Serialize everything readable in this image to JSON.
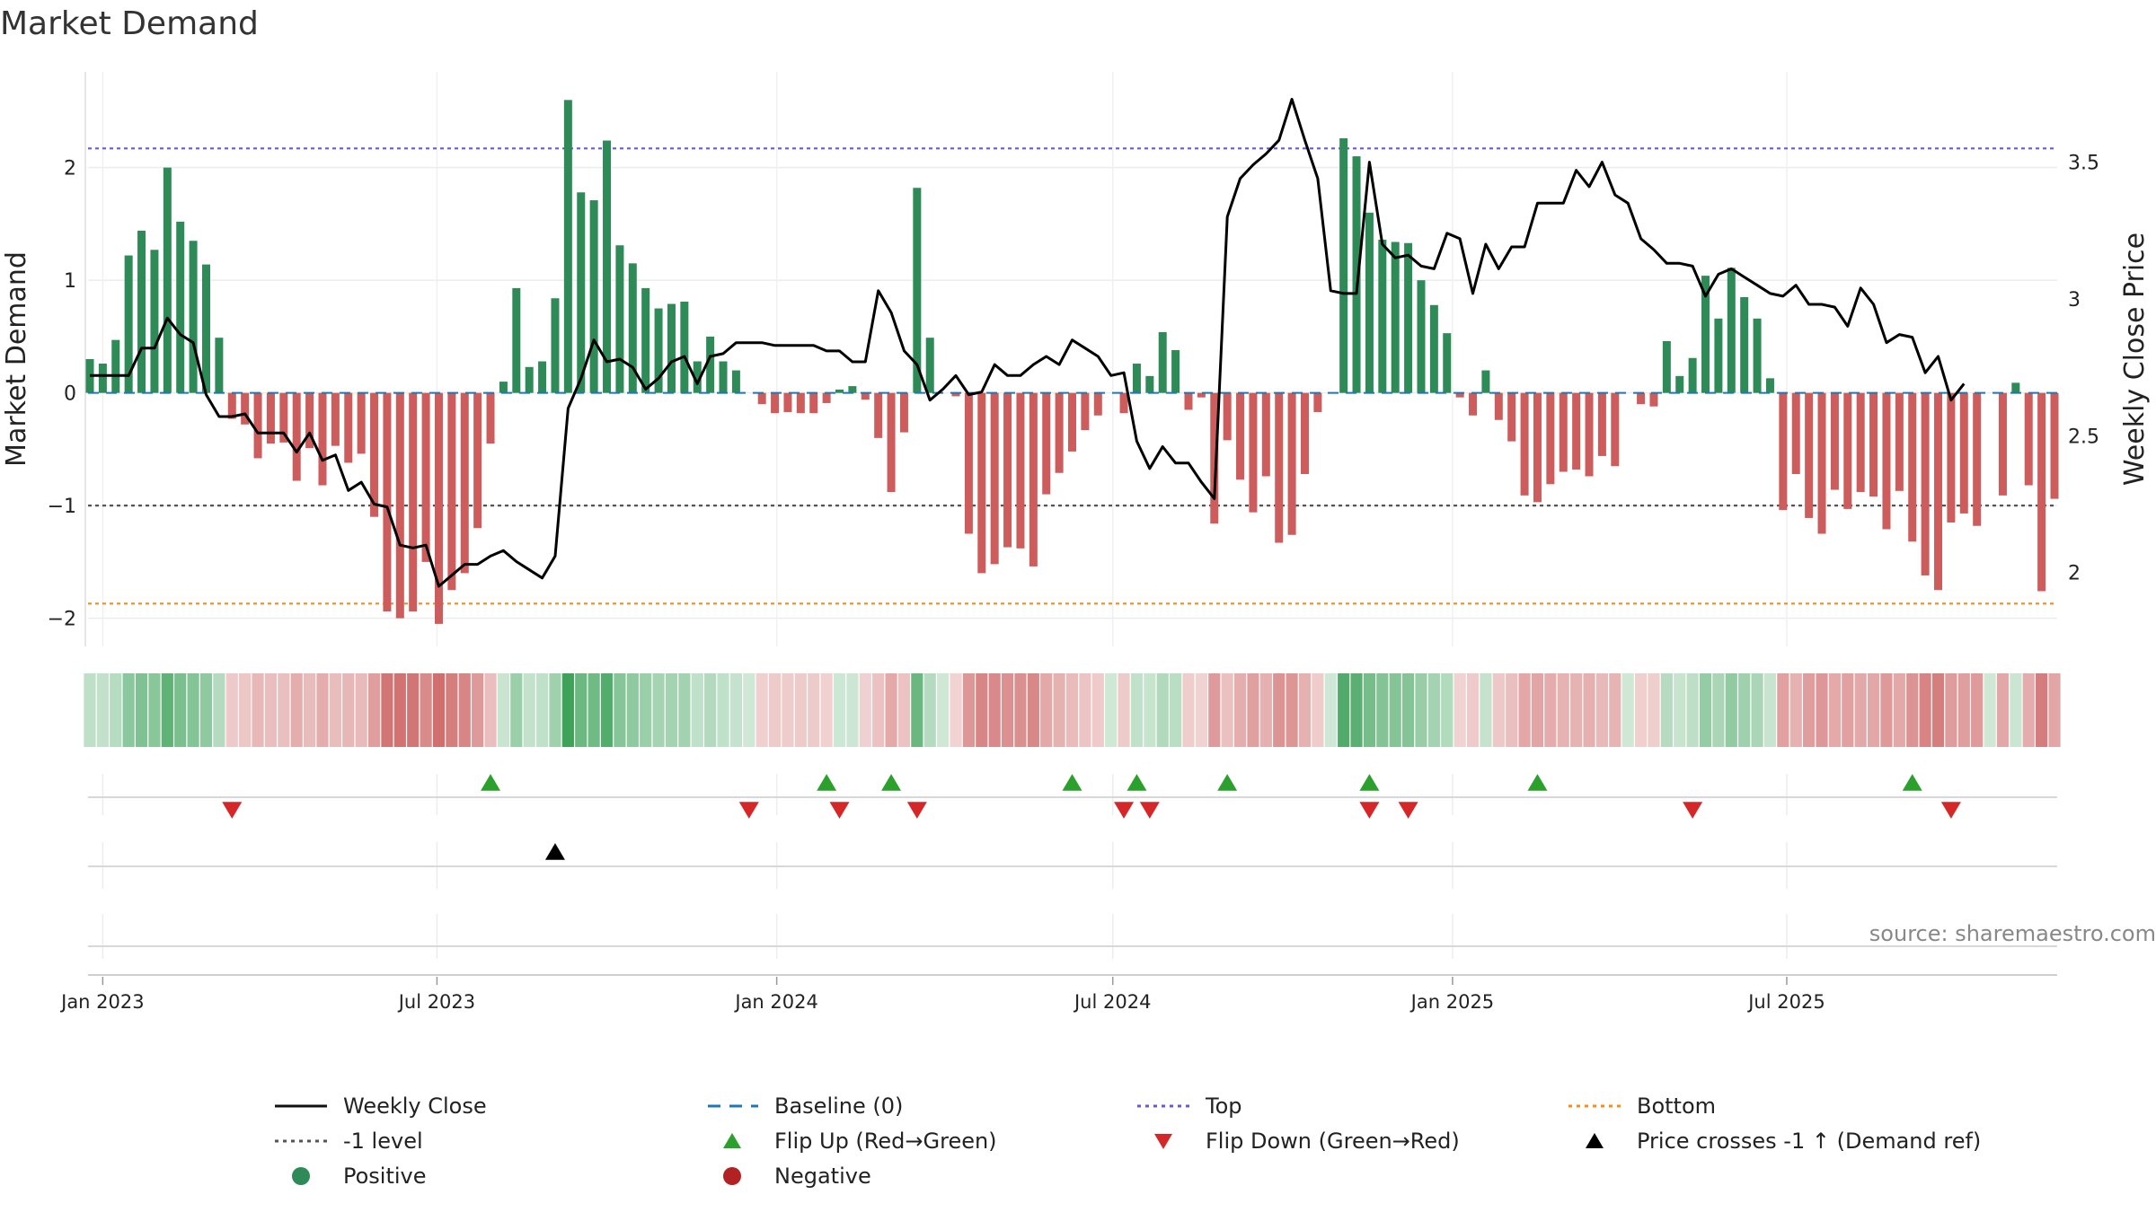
{
  "chart_data": {
    "type": "bar+line",
    "title": "Market Demand",
    "ylabel_left": "Market Demand",
    "ylabel_right": "Weekly Close Price",
    "ylim_left": [
      -2.25,
      2.85
    ],
    "ylim_right": [
      1.73,
      3.83
    ],
    "yticks_left": [
      {
        "v": 2,
        "label": "2"
      },
      {
        "v": 1,
        "label": "1"
      },
      {
        "v": 0,
        "label": "0"
      },
      {
        "v": -1,
        "label": "−1"
      },
      {
        "v": -2,
        "label": "−2"
      }
    ],
    "yticks_right": [
      {
        "v": 3.5,
        "label": "3.5"
      },
      {
        "v": 3,
        "label": "3"
      },
      {
        "v": 2.5,
        "label": "2.5"
      },
      {
        "v": 2,
        "label": "2"
      }
    ],
    "reference_lines": {
      "top": 2.17,
      "bottom": -1.87,
      "minus_one": -1,
      "baseline": 0
    },
    "x_start": "2022-12-25",
    "week_days": 7,
    "x_ticks": [
      {
        "date": "2023-01-01",
        "label": "Jan 2023"
      },
      {
        "date": "2023-07-01",
        "label": "Jul 2023"
      },
      {
        "date": "2024-01-01",
        "label": "Jan 2024"
      },
      {
        "date": "2024-07-01",
        "label": "Jul 2024"
      },
      {
        "date": "2025-01-01",
        "label": "Jan 2025"
      },
      {
        "date": "2025-07-01",
        "label": "Jul 2025"
      }
    ],
    "demand": [
      0.3,
      0.26,
      0.47,
      1.22,
      1.44,
      1.27,
      2.0,
      1.52,
      1.35,
      1.14,
      0.49,
      -0.23,
      -0.28,
      -0.58,
      -0.45,
      -0.44,
      -0.78,
      -0.49,
      -0.82,
      -0.47,
      -0.62,
      -0.54,
      -1.1,
      -1.94,
      -2.0,
      -1.94,
      -1.5,
      -2.05,
      -1.75,
      -1.6,
      -1.2,
      -0.45,
      0.1,
      0.93,
      0.23,
      0.28,
      0.84,
      2.6,
      1.78,
      1.71,
      2.24,
      1.31,
      1.15,
      0.93,
      0.75,
      0.79,
      0.81,
      0.28,
      0.5,
      0.28,
      0.2,
      0.0,
      -0.1,
      -0.18,
      -0.17,
      -0.18,
      -0.18,
      -0.09,
      0.03,
      0.06,
      -0.06,
      -0.4,
      -0.88,
      -0.35,
      1.82,
      0.49,
      0.0,
      -0.03,
      -1.25,
      -1.6,
      -1.52,
      -1.37,
      -1.38,
      -1.54,
      -0.9,
      -0.71,
      -0.52,
      -0.33,
      -0.2,
      0.0,
      -0.18,
      0.26,
      0.15,
      0.54,
      0.38,
      -0.15,
      -0.04,
      -1.16,
      -0.42,
      -0.77,
      -1.06,
      -0.74,
      -1.33,
      -1.26,
      -0.72,
      -0.17,
      0.0,
      2.26,
      2.1,
      1.6,
      1.36,
      1.34,
      1.33,
      1.0,
      0.78,
      0.53,
      -0.04,
      -0.2,
      0.2,
      -0.24,
      -0.43,
      -0.91,
      -0.97,
      -0.81,
      -0.7,
      -0.68,
      -0.74,
      -0.56,
      -0.65,
      0.0,
      -0.1,
      -0.12,
      0.46,
      0.15,
      0.31,
      1.04,
      0.66,
      1.11,
      0.85,
      0.66,
      0.13,
      -1.04,
      -0.72,
      -1.11,
      -1.25,
      -0.86,
      -1.03,
      -0.88,
      -0.92,
      -1.21,
      -0.87,
      -1.32,
      -1.62,
      -1.75,
      -1.15,
      -1.07,
      -1.18,
      0.0,
      -0.91,
      0.09,
      -0.82,
      -1.76,
      -0.94
    ],
    "close": [
      2.72,
      2.72,
      2.72,
      2.72,
      2.82,
      2.82,
      2.93,
      2.87,
      2.84,
      2.65,
      2.57,
      2.57,
      2.58,
      2.51,
      2.51,
      2.51,
      2.44,
      2.51,
      2.41,
      2.43,
      2.3,
      2.33,
      2.25,
      2.24,
      2.1,
      2.09,
      2.1,
      1.95,
      1.99,
      2.03,
      2.03,
      2.06,
      2.08,
      2.04,
      2.01,
      1.98,
      2.06,
      2.6,
      2.71,
      2.85,
      2.77,
      2.78,
      2.75,
      2.67,
      2.71,
      2.77,
      2.79,
      2.69,
      2.79,
      2.8,
      2.84,
      2.84,
      2.84,
      2.83,
      2.83,
      2.83,
      2.83,
      2.81,
      2.81,
      2.77,
      2.77,
      3.03,
      2.95,
      2.81,
      2.76,
      2.63,
      2.67,
      2.72,
      2.65,
      2.66,
      2.76,
      2.72,
      2.72,
      2.76,
      2.79,
      2.76,
      2.85,
      2.82,
      2.79,
      2.72,
      2.73,
      2.48,
      2.38,
      2.46,
      2.4,
      2.4,
      2.33,
      2.27,
      3.3,
      3.44,
      3.49,
      3.53,
      3.58,
      3.73,
      3.58,
      3.44,
      3.03,
      3.02,
      3.02,
      3.5,
      3.2,
      3.15,
      3.16,
      3.12,
      3.11,
      3.24,
      3.22,
      3.02,
      3.2,
      3.11,
      3.19,
      3.19,
      3.35,
      3.35,
      3.35,
      3.47,
      3.41,
      3.5,
      3.38,
      3.35,
      3.22,
      3.18,
      3.13,
      3.13,
      3.12,
      3.01,
      3.09,
      3.11,
      3.08,
      3.05,
      3.02,
      3.01,
      3.05,
      2.98,
      2.98,
      2.97,
      2.9,
      3.04,
      2.98,
      2.84,
      2.87,
      2.86,
      2.73,
      2.79,
      2.63,
      2.69
    ],
    "flip_up_idx": [
      31,
      57,
      62,
      76,
      81,
      88,
      99,
      112,
      141
    ],
    "flip_down_idx": [
      11,
      51,
      58,
      64,
      80,
      82,
      99,
      102,
      124,
      144
    ],
    "price_cross_idx": [
      36
    ],
    "positive_color": "#2e8b57",
    "negative_color": "#cd5c5c",
    "top_color": "#6a5acd",
    "bottom_color": "#f28e1c",
    "baseline_color": "#1f77b4",
    "minus_one_color": "#555555",
    "flip_up_color": "#2ca02c",
    "flip_down_color": "#d62728",
    "price_color": "#000000",
    "legend": [
      {
        "label": "Weekly Close",
        "marker": "solid-line",
        "color": "#111111"
      },
      {
        "label": "Baseline (0)",
        "marker": "dashed-line",
        "color": "#1f77b4"
      },
      {
        "label": "Top",
        "marker": "dotted-line",
        "color": "#6a5acd"
      },
      {
        "label": "Bottom",
        "marker": "dotted-line",
        "color": "#f28e1c"
      },
      {
        "label": "-1 level",
        "marker": "dotted-line",
        "color": "#555555"
      },
      {
        "label": "Flip Up (Red→Green)",
        "marker": "triangle-up",
        "color": "#2ca02c"
      },
      {
        "label": "Flip Down (Green→Red)",
        "marker": "triangle-down",
        "color": "#d62728"
      },
      {
        "label": "Price crosses -1 ↑ (Demand ref)",
        "marker": "triangle-up",
        "color": "#000000"
      },
      {
        "label": "Positive",
        "marker": "dot",
        "color": "#2e8b57"
      },
      {
        "label": "Negative",
        "marker": "dot",
        "color": "#b22222"
      }
    ],
    "source": "source: sharemaestro.com"
  }
}
